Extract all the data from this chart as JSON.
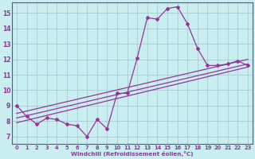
{
  "xlabel": "Windchill (Refroidissement éolien,°C)",
  "background_color": "#c8eef0",
  "grid_color": "#a8ccd0",
  "line_color": "#993399",
  "xlim": [
    -0.5,
    23.5
  ],
  "ylim": [
    6.5,
    15.7
  ],
  "xtick_labels": [
    "0",
    "1",
    "2",
    "3",
    "4",
    "5",
    "6",
    "7",
    "8",
    "9",
    "10",
    "11",
    "12",
    "13",
    "14",
    "15",
    "16",
    "17",
    "18",
    "19",
    "20",
    "21",
    "22",
    "23"
  ],
  "xtick_pos": [
    0,
    1,
    2,
    3,
    4,
    5,
    6,
    7,
    8,
    9,
    10,
    11,
    12,
    13,
    14,
    15,
    16,
    17,
    18,
    19,
    20,
    21,
    22,
    23
  ],
  "yticks": [
    7,
    8,
    9,
    10,
    11,
    12,
    13,
    14,
    15
  ],
  "series1_x": [
    0,
    1,
    2,
    3,
    4,
    5,
    6,
    7,
    8,
    9,
    10,
    11,
    12,
    13,
    14,
    15,
    16,
    17,
    18,
    19,
    20,
    21,
    22,
    23
  ],
  "series1_y": [
    9.0,
    8.3,
    7.8,
    8.2,
    8.1,
    7.8,
    7.7,
    7.0,
    8.1,
    7.5,
    9.8,
    9.8,
    12.1,
    14.7,
    14.6,
    15.3,
    15.4,
    14.3,
    12.7,
    11.6,
    11.6,
    11.7,
    11.9,
    11.6
  ],
  "series2_x": [
    0,
    23
  ],
  "series2_y": [
    8.5,
    12.0
  ],
  "series3_x": [
    0,
    23
  ],
  "series3_y": [
    8.2,
    11.7
  ],
  "series4_x": [
    0,
    23
  ],
  "series4_y": [
    7.9,
    11.5
  ]
}
